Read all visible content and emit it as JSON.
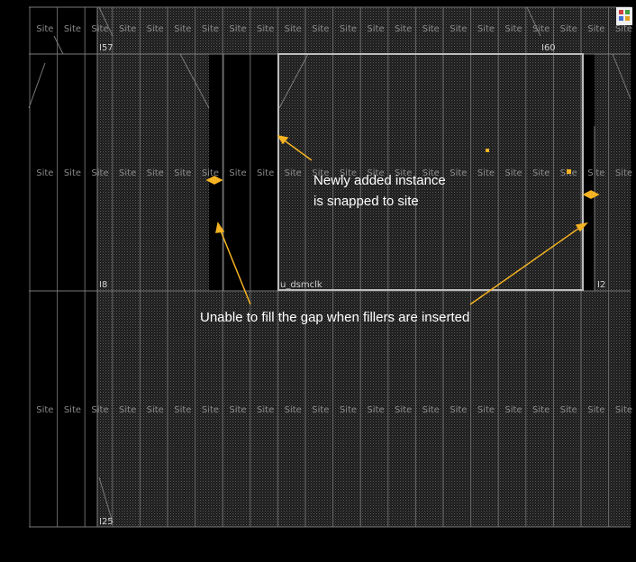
{
  "site_label": "Site",
  "instances": [
    {
      "label": "I57"
    },
    {
      "label": "I60"
    },
    {
      "label": "I8"
    },
    {
      "label": "u_dsmclk"
    },
    {
      "label": "I2"
    },
    {
      "label": "I25"
    }
  ],
  "annotations": [
    {
      "lines": [
        "Newly added instance",
        "is snapped to site"
      ]
    },
    {
      "lines": [
        "Unable to fill the gap when fillers are inserted"
      ]
    }
  ]
}
